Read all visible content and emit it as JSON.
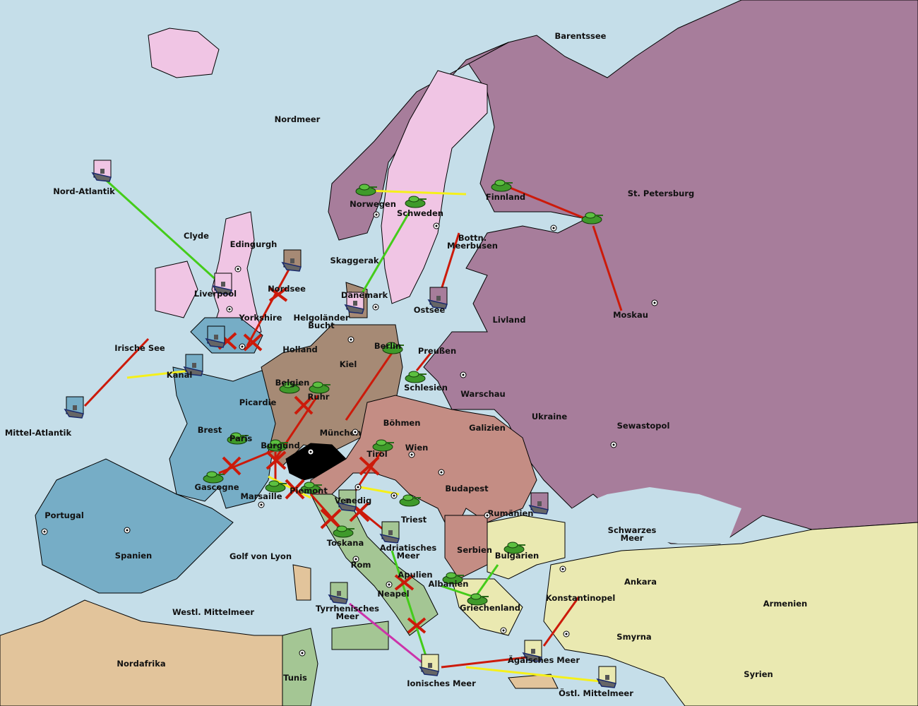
{
  "map_title": "",
  "colors": {
    "sea": "#c5dee9",
    "russia": "#a77d9b",
    "scandinavia_england": "#f0c5e4",
    "france": "#76adc6",
    "germany": "#a68a75",
    "austria": "#c48d84",
    "italy": "#a4c694",
    "turkey": "#eae9b1",
    "neutral": "#e2c49b",
    "switzerland": "#000000",
    "order_move": "#cc1a0a",
    "order_support": "#f5f01a",
    "order_convoy": "#44cc1a",
    "order_retreat": "#cc33aa"
  },
  "regions": {
    "barentssee": "Barentssee",
    "nordmeer": "Nordmeer",
    "nord_atlantik": "Nord-Atlantik",
    "st_petersburg": "St. Petersburg",
    "finnland": "Finnland",
    "norwegen": "Norwegen",
    "schweden": "Schweden",
    "clyde": "Clyde",
    "edingurgh": "Edingurgh",
    "bottn": "Bottn.\nMeerbusen",
    "skaggerak": "Skaggerak",
    "nordsee": "Nordsee",
    "liverpool": "Liverpool",
    "daenemark": "Dänemark",
    "ostsee": "Ostsee",
    "moskau": "Moskau",
    "yorkshire": "Yorkshire",
    "helgolaender": "Helgoländer\nBucht",
    "livland": "Livland",
    "irische_see": "Irische See",
    "holland": "Holland",
    "berlin": "Berlin",
    "preussen": "Preußen",
    "kiel": "Kiel",
    "kanal": "Kanal",
    "belgien": "Belgien",
    "schlesien": "Schlesien",
    "warschau": "Warschau",
    "ruhr": "Ruhr",
    "mittel_atlantik": "Mittel-Atlantik",
    "picardie": "Picardie",
    "boehmen": "Böhmen",
    "galizien": "Galizien",
    "ukraine": "Ukraine",
    "sewastopol": "Sewastopol",
    "brest": "Brest",
    "muenchen": "München",
    "paris": "Paris",
    "wien": "Wien",
    "burgund": "Burgund",
    "tirol": "Tirol",
    "gascogne": "Gascogne",
    "budapest": "Budapest",
    "piemont": "Piemont",
    "marsaille": "Marsaille",
    "venedig": "Venedig",
    "rumaenien": "Rumänien",
    "portugal": "Portugal",
    "triest": "Triest",
    "schwarzes_meer": "Schwarzes\nMeer",
    "toskana": "Toskana",
    "adriatisches_meer": "Adriatisches\nMeer",
    "serbien": "Serbien",
    "spanien": "Spanien",
    "golf_von_lyon": "Golf von Lyon",
    "bulgarien": "Bulgarien",
    "rom": "Rom",
    "apulien": "Apulien",
    "ankara": "Ankara",
    "albanien": "Albanien",
    "neapel": "Neapel",
    "armenien": "Armenien",
    "konstantinopel": "Konstantinopel",
    "griechenland": "Griechenland",
    "westl_mittelmeer": "Westl. Mittelmeer",
    "tyrrhenisches": "Tyrrhenisches\nMeer",
    "smyrna": "Smyrna",
    "nordafrika": "Nordafrika",
    "aegaeisches": "Ägäisches Meer",
    "tunis": "Tunis",
    "ionisches": "Ionisches Meer",
    "syrien": "Syrien",
    "oestl_mittelmeer": "Östl. Mittelmeer"
  },
  "units": [
    {
      "type": "fleet",
      "power": "scandinavia_england",
      "at": "Nord-Atlantik"
    },
    {
      "type": "army",
      "power": "russia",
      "at": "Norwegen"
    },
    {
      "type": "army",
      "power": "russia",
      "at": "Finnland"
    },
    {
      "type": "army",
      "power": "russia",
      "at": "St. Petersburg"
    },
    {
      "type": "army",
      "power": "scandinavia_england",
      "at": "Schweden"
    },
    {
      "type": "fleet",
      "power": "germany",
      "at": "Nordsee"
    },
    {
      "type": "fleet",
      "power": "scandinavia_england",
      "at": "Liverpool"
    },
    {
      "type": "fleet",
      "power": "scandinavia_england",
      "at": "Dänemark"
    },
    {
      "type": "fleet",
      "power": "russia",
      "at": "Ostsee"
    },
    {
      "type": "fleet",
      "power": "france",
      "at": "Yorkshire"
    },
    {
      "type": "fleet",
      "power": "france",
      "at": "Kanal"
    },
    {
      "type": "fleet",
      "power": "france",
      "at": "Mittel-Atlantik"
    },
    {
      "type": "army",
      "power": "germany",
      "at": "Berlin"
    },
    {
      "type": "army",
      "power": "russia",
      "at": "Schlesien"
    },
    {
      "type": "army",
      "power": "germany",
      "at": "Belgien"
    },
    {
      "type": "army",
      "power": "germany",
      "at": "Ruhr"
    },
    {
      "type": "army",
      "power": "france",
      "at": "Paris"
    },
    {
      "type": "army",
      "power": "germany",
      "at": "Burgund"
    },
    {
      "type": "army",
      "power": "austria",
      "at": "Tirol"
    },
    {
      "type": "army",
      "power": "france",
      "at": "Gascogne"
    },
    {
      "type": "army",
      "power": "france",
      "at": "Marsaille"
    },
    {
      "type": "army",
      "power": "italy",
      "at": "Piemont"
    },
    {
      "type": "fleet",
      "power": "italy",
      "at": "Venedig"
    },
    {
      "type": "army",
      "power": "austria",
      "at": "Triest"
    },
    {
      "type": "fleet",
      "power": "russia",
      "at": "Rumänien"
    },
    {
      "type": "army",
      "power": "italy",
      "at": "Toskana"
    },
    {
      "type": "fleet",
      "power": "italy",
      "at": "Adriatisches Meer"
    },
    {
      "type": "army",
      "power": "turkey",
      "at": "Bulgarien"
    },
    {
      "type": "army",
      "power": "austria",
      "at": "Albanien"
    },
    {
      "type": "army",
      "power": "turkey",
      "at": "Griechenland"
    },
    {
      "type": "fleet",
      "power": "italy",
      "at": "Tyrrhenisches Meer"
    },
    {
      "type": "fleet",
      "power": "turkey",
      "at": "Ionisches Meer"
    },
    {
      "type": "fleet",
      "power": "turkey",
      "at": "Ägäisches Meer"
    },
    {
      "type": "fleet",
      "power": "turkey",
      "at": "Östl. Mittelmeer"
    }
  ]
}
